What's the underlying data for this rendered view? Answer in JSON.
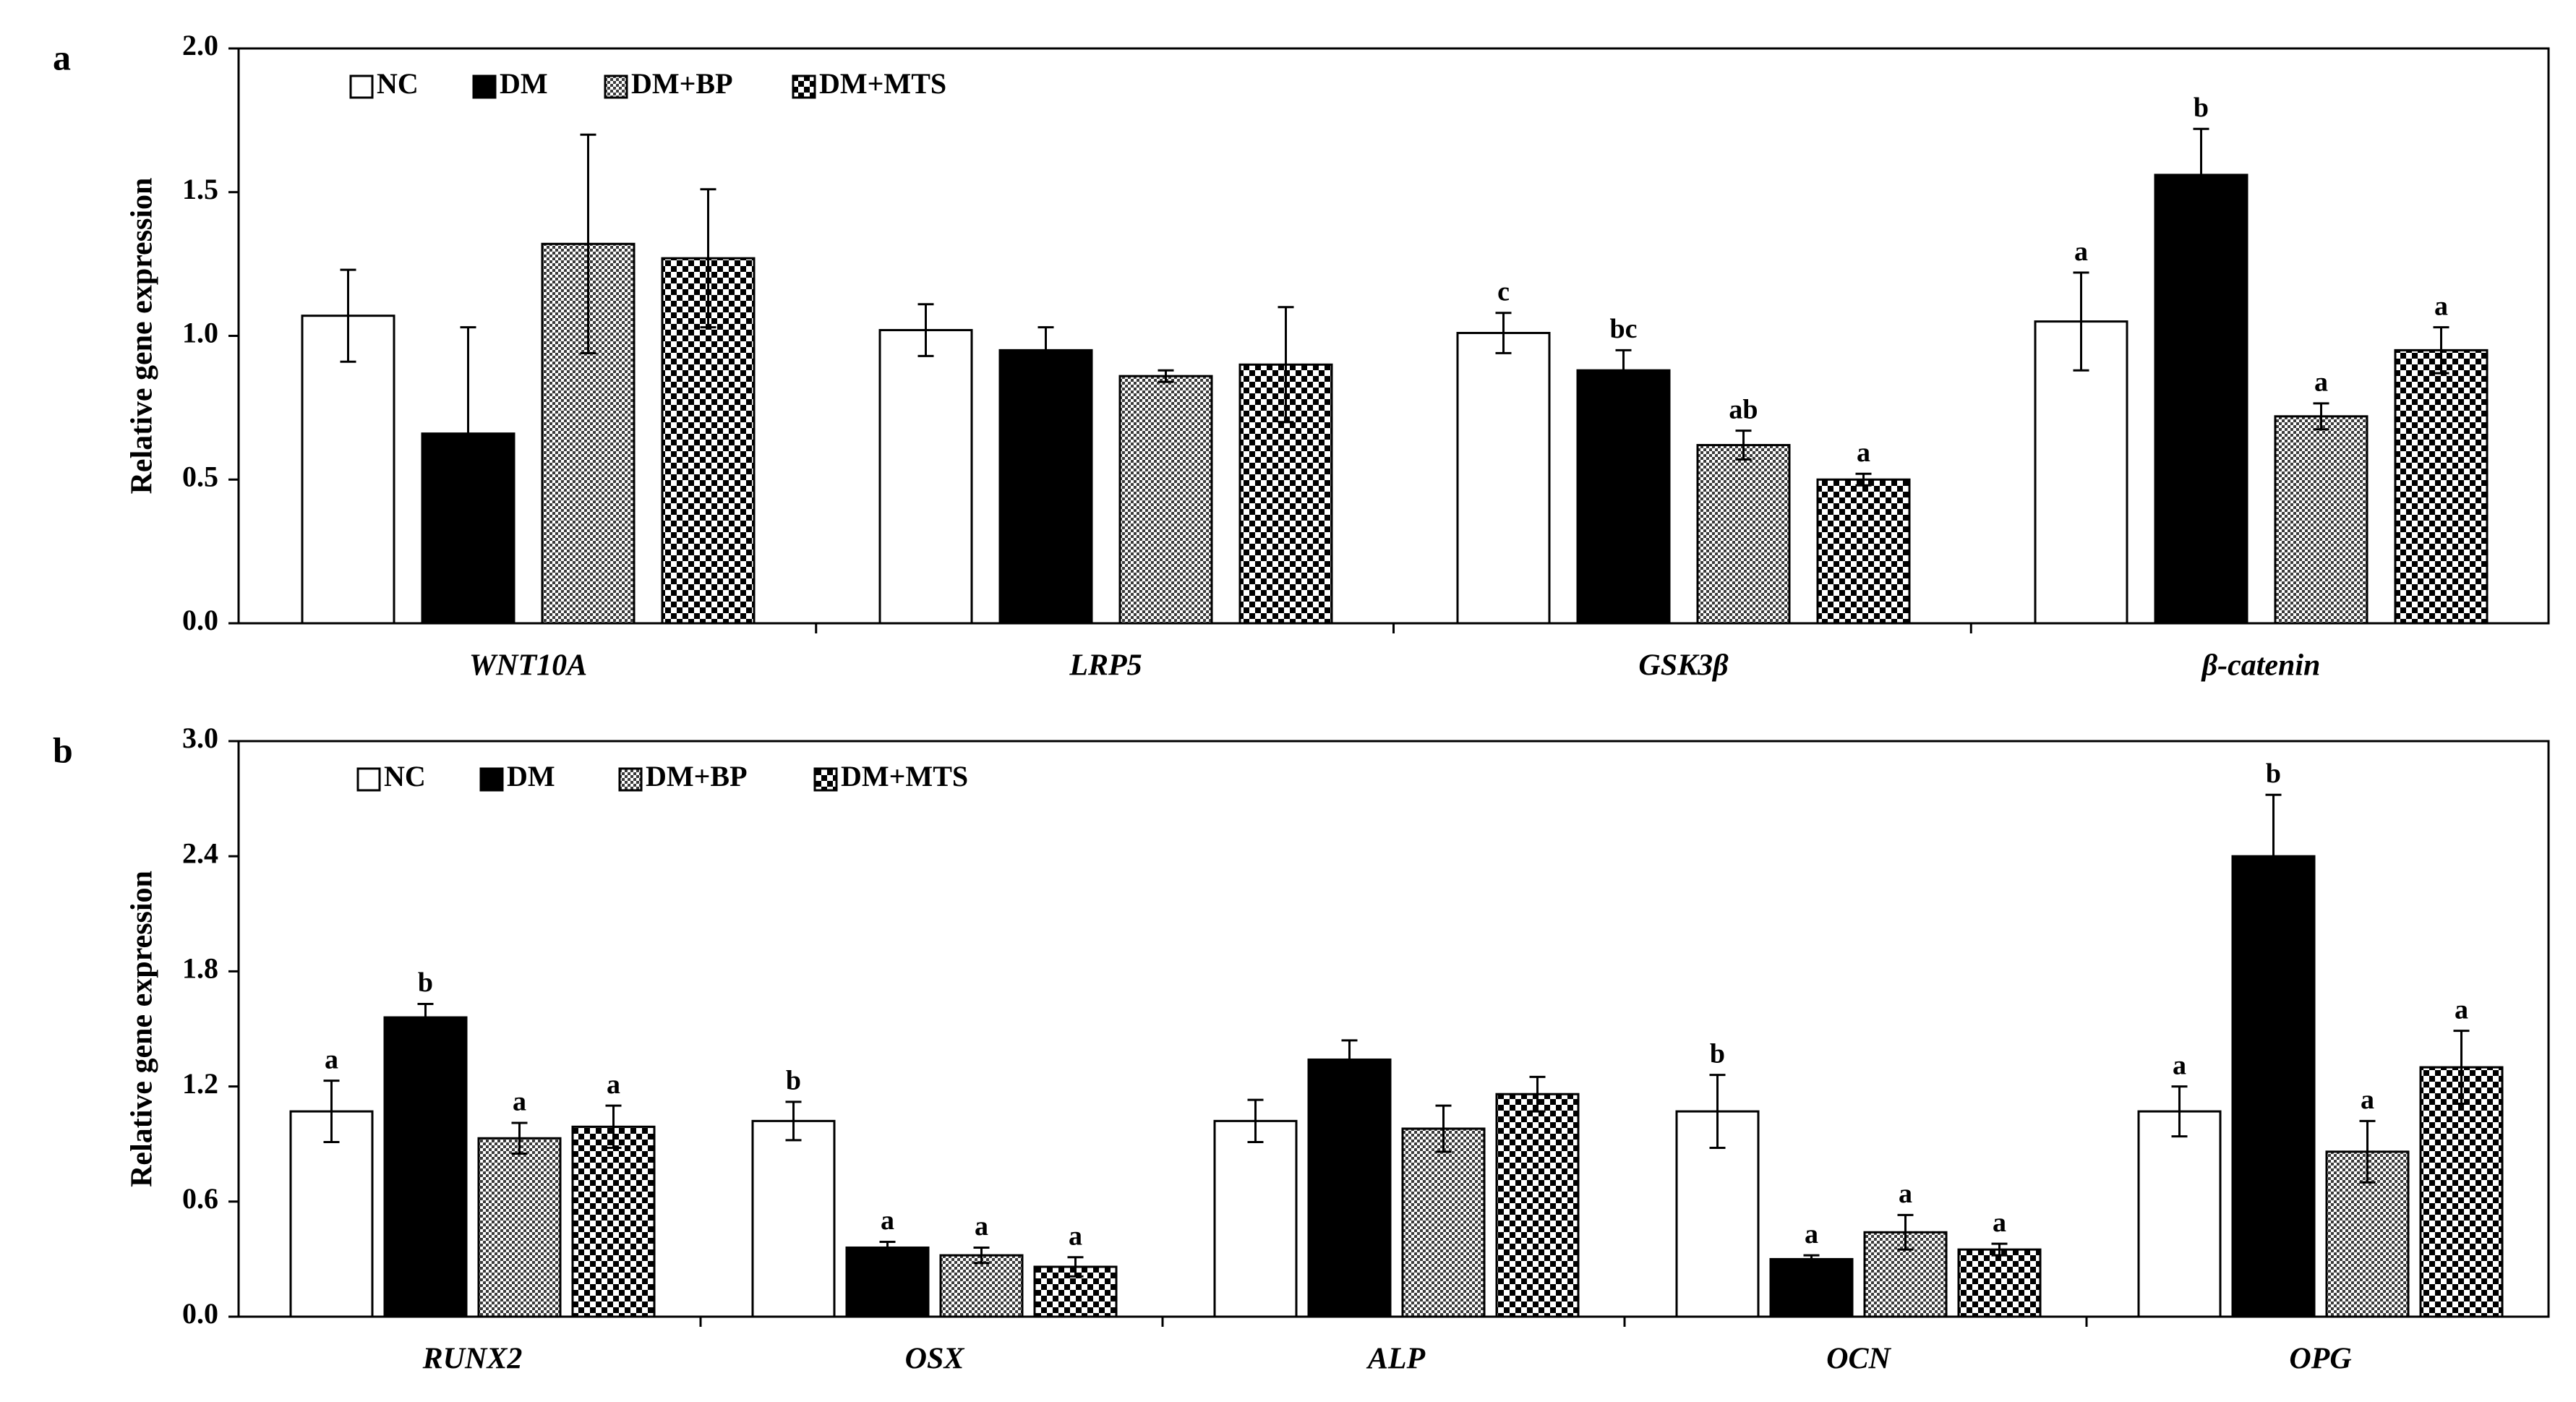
{
  "chart_data": [
    {
      "type": "bar",
      "panel": "a",
      "title": "",
      "xlabel": "",
      "ylabel": "Relative gene expression",
      "ylim": [
        0,
        2.0
      ],
      "yticks": [
        0.0,
        0.5,
        1.0,
        1.5,
        2.0
      ],
      "ytick_labels": [
        "0.0",
        "0.5",
        "1.0",
        "1.5",
        "2.0"
      ],
      "legend_position": "top-left",
      "categories": [
        "WNT10A",
        "LRP5",
        "GSK3β",
        "β-catenin"
      ],
      "series": [
        {
          "name": "NC",
          "pattern": "white",
          "values": [
            1.07,
            1.02,
            1.01,
            1.05
          ],
          "errors": [
            0.16,
            0.09,
            0.07,
            0.17
          ],
          "labels": [
            "",
            "",
            "c",
            "a"
          ]
        },
        {
          "name": "DM",
          "pattern": "black",
          "values": [
            0.66,
            0.95,
            0.88,
            1.56
          ],
          "errors": [
            0.37,
            0.08,
            0.07,
            0.16
          ],
          "labels": [
            "",
            "",
            "bc",
            "b"
          ]
        },
        {
          "name": "DM+BP",
          "pattern": "crosshatch",
          "values": [
            1.32,
            0.86,
            0.62,
            0.72
          ],
          "errors": [
            0.38,
            0.02,
            0.05,
            0.045
          ],
          "labels": [
            "",
            "",
            "ab",
            "a"
          ]
        },
        {
          "name": "DM+MTS",
          "pattern": "checker",
          "values": [
            1.27,
            0.9,
            0.5,
            0.95
          ],
          "errors": [
            0.24,
            0.2,
            0.02,
            0.08
          ],
          "labels": [
            "",
            "",
            "a",
            "a"
          ]
        }
      ]
    },
    {
      "type": "bar",
      "panel": "b",
      "title": "",
      "xlabel": "",
      "ylabel": "Relative gene expression",
      "ylim": [
        0,
        3.0
      ],
      "yticks": [
        0.0,
        0.6,
        1.2,
        1.8,
        2.4,
        3.0
      ],
      "ytick_labels": [
        "0.0",
        "0.6",
        "1.2",
        "1.8",
        "2.4",
        "3.0"
      ],
      "legend_position": "top-left",
      "categories": [
        "RUNX2",
        "OSX",
        "ALP",
        "OCN",
        "OPG"
      ],
      "series": [
        {
          "name": "NC",
          "pattern": "white",
          "values": [
            1.07,
            1.02,
            1.02,
            1.07,
            1.07
          ],
          "errors": [
            0.16,
            0.1,
            0.11,
            0.19,
            0.13
          ],
          "labels": [
            "a",
            "b",
            "",
            "b",
            "a"
          ]
        },
        {
          "name": "DM",
          "pattern": "black",
          "values": [
            1.56,
            0.36,
            1.34,
            0.3,
            2.4
          ],
          "errors": [
            0.07,
            0.03,
            0.1,
            0.02,
            0.32
          ],
          "labels": [
            "b",
            "a",
            "",
            "a",
            "b"
          ]
        },
        {
          "name": "DM+BP",
          "pattern": "crosshatch",
          "values": [
            0.93,
            0.32,
            0.98,
            0.44,
            0.86
          ],
          "errors": [
            0.08,
            0.04,
            0.12,
            0.09,
            0.16
          ],
          "labels": [
            "a",
            "a",
            "",
            "a",
            "a"
          ]
        },
        {
          "name": "DM+MTS",
          "pattern": "checker",
          "values": [
            0.99,
            0.26,
            1.16,
            0.35,
            1.3
          ],
          "errors": [
            0.11,
            0.05,
            0.09,
            0.03,
            0.19
          ],
          "labels": [
            "a",
            "a",
            "",
            "a",
            "a"
          ]
        }
      ]
    }
  ]
}
